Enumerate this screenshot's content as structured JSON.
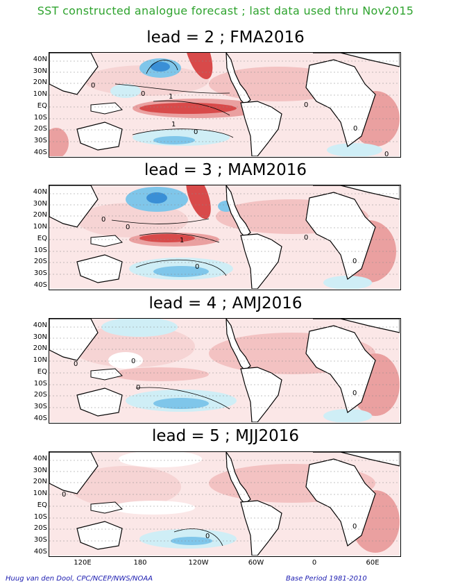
{
  "title": "SST constructed analogue forecast ; last data used thru Nov2015",
  "lat_labels": [
    "40N",
    "30N",
    "20N",
    "10N",
    "EQ",
    "10S",
    "20S",
    "30S",
    "40S"
  ],
  "lon_labels": [
    "120E",
    "180",
    "120W",
    "60W",
    "0",
    "60E"
  ],
  "colors": {
    "title": "#2ea32e",
    "credit": "#1a1ab0",
    "warm_light": "#f6d4d4",
    "warm_mid": "#eaa0a0",
    "warm_strong": "#d84a4a",
    "cool_light": "#cfeef6",
    "cool_mid": "#7fc6ea",
    "cool_strong": "#3a8fd6"
  },
  "panels": [
    {
      "label": "lead = 2 ; FMA2016",
      "contour_labels": [
        "0",
        "0",
        "1",
        "1",
        "0",
        "0",
        "0",
        "0"
      ]
    },
    {
      "label": "lead = 3 ; MAM2016",
      "contour_labels": [
        "0",
        "0",
        "1",
        "0",
        "0",
        "0"
      ]
    },
    {
      "label": "lead = 4 ; AMJ2016",
      "contour_labels": [
        "0",
        "0",
        "0",
        "0"
      ]
    },
    {
      "label": "lead = 5 ; MJJ2016",
      "contour_labels": [
        "0",
        "0",
        "0"
      ]
    }
  ],
  "credit_left": "Huug van den Dool, CPC/NCEP/NWS/NOAA",
  "credit_right": "Base Period 1981-2010"
}
